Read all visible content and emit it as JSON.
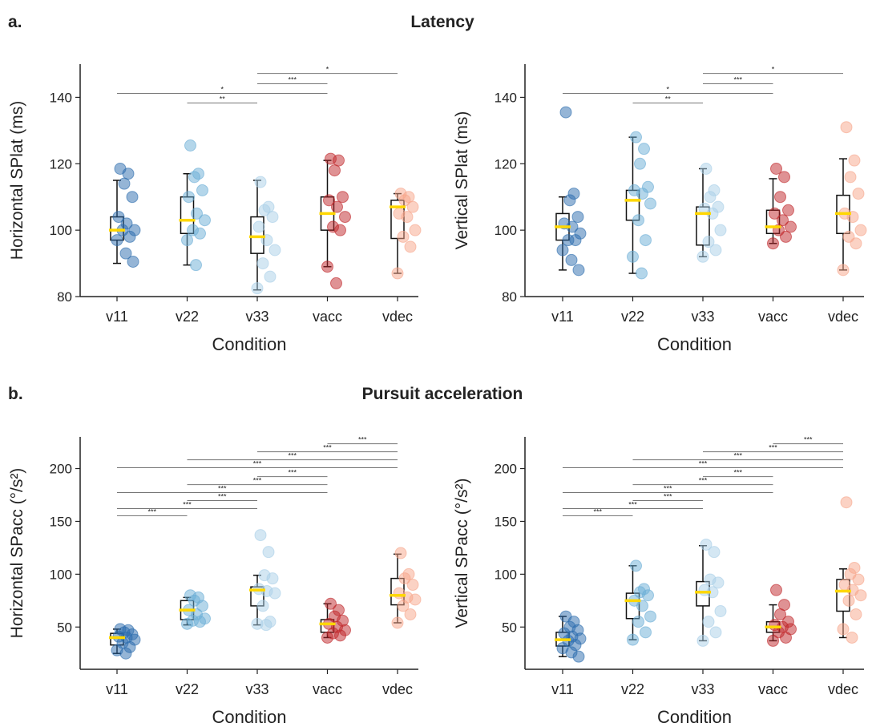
{
  "sections": [
    {
      "letter": "a.",
      "title": "Latency"
    },
    {
      "letter": "b.",
      "title": "Pursuit acceleration"
    }
  ],
  "chart_data": [
    {
      "type": "box",
      "ylabel": "Horizontal SPlat (ms)",
      "xlabel": "Condition",
      "categories": [
        "v11",
        "v22",
        "v33",
        "vacc",
        "vdec"
      ],
      "colors": [
        "#2b6cad",
        "#6aaed6",
        "#a9cfe8",
        "#c0262a",
        "#f7a58a"
      ],
      "median_color": "#ffd700",
      "ylim": [
        80,
        150
      ],
      "yticks": [
        80,
        100,
        120,
        140
      ],
      "groups": [
        {
          "points": [
            118.5,
            117,
            114,
            110,
            104,
            102,
            100,
            100,
            98,
            97,
            93,
            90.5
          ],
          "whisker_low": 90,
          "q1": 97,
          "median": 100,
          "q3": 104,
          "whisker_high": 115
        },
        {
          "points": [
            125.5,
            117,
            116,
            112,
            110,
            105,
            103,
            100,
            99,
            97,
            89.5
          ],
          "whisker_low": 89.5,
          "q1": 99,
          "median": 103,
          "q3": 110,
          "whisker_high": 117
        },
        {
          "points": [
            114.5,
            107,
            106,
            104,
            101,
            97,
            94,
            90,
            86,
            82.5
          ],
          "whisker_low": 82,
          "q1": 93,
          "median": 98,
          "q3": 104,
          "whisker_high": 115
        },
        {
          "points": [
            121.5,
            121,
            118,
            110,
            109,
            107,
            104,
            101,
            100,
            89,
            84
          ],
          "whisker_low": 89,
          "q1": 100,
          "median": 105,
          "q3": 110,
          "whisker_high": 121
        },
        {
          "points": [
            111,
            110,
            109,
            107,
            105,
            104,
            100,
            98,
            95,
            87
          ],
          "whisker_low": 87,
          "q1": 97.5,
          "median": 107,
          "q3": 109,
          "whisker_high": 111
        }
      ],
      "significance": [
        {
          "between": [
            2,
            4
          ],
          "y": 147.2,
          "label": "*"
        },
        {
          "between": [
            2,
            3
          ],
          "y": 144.1,
          "label": "***"
        },
        {
          "between": [
            0,
            3
          ],
          "y": 141.2,
          "label": "*"
        },
        {
          "between": [
            1,
            2
          ],
          "y": 138.3,
          "label": "**"
        }
      ]
    },
    {
      "type": "box",
      "ylabel": "Vertical SPlat (ms)",
      "xlabel": "Condition",
      "categories": [
        "v11",
        "v22",
        "v33",
        "vacc",
        "vdec"
      ],
      "colors": [
        "#2b6cad",
        "#6aaed6",
        "#a9cfe8",
        "#c0262a",
        "#f7a58a"
      ],
      "median_color": "#ffd700",
      "ylim": [
        80,
        150
      ],
      "yticks": [
        80,
        100,
        120,
        140
      ],
      "groups": [
        {
          "points": [
            135.5,
            111,
            109,
            104,
            102,
            101,
            99,
            97,
            97,
            94,
            91,
            88
          ],
          "whisker_low": 88,
          "q1": 97,
          "median": 101,
          "q3": 105,
          "whisker_high": 110
        },
        {
          "points": [
            128,
            124.5,
            120,
            113,
            112,
            111,
            108,
            103,
            97,
            92,
            87
          ],
          "whisker_low": 87,
          "q1": 103,
          "median": 109,
          "q3": 112,
          "whisker_high": 128
        },
        {
          "points": [
            118.5,
            112,
            110,
            107,
            106.5,
            105,
            100,
            96.5,
            94,
            92
          ],
          "whisker_low": 92,
          "q1": 95.5,
          "median": 105,
          "q3": 107,
          "whisker_high": 118.5
        },
        {
          "points": [
            118.5,
            116,
            110,
            106,
            105,
            103,
            101,
            100,
            98,
            96
          ],
          "whisker_low": 96,
          "q1": 99,
          "median": 101,
          "q3": 106,
          "whisker_high": 115.5
        },
        {
          "points": [
            131,
            121,
            116,
            111,
            105,
            104,
            100,
            98,
            96,
            88
          ],
          "whisker_low": 88,
          "q1": 99,
          "median": 105,
          "q3": 110.5,
          "whisker_high": 121.5
        }
      ],
      "significance": [
        {
          "between": [
            2,
            4
          ],
          "y": 147.2,
          "label": "*"
        },
        {
          "between": [
            2,
            3
          ],
          "y": 144.1,
          "label": "***"
        },
        {
          "between": [
            0,
            3
          ],
          "y": 141.2,
          "label": "*"
        },
        {
          "between": [
            1,
            2
          ],
          "y": 138.3,
          "label": "**"
        }
      ]
    },
    {
      "type": "box",
      "ylabel": "Horizontal SPacc (°/s²)",
      "xlabel": "Condition",
      "categories": [
        "v11",
        "v22",
        "v33",
        "vacc",
        "vdec"
      ],
      "colors": [
        "#2b6cad",
        "#6aaed6",
        "#a9cfe8",
        "#c0262a",
        "#f7a58a"
      ],
      "median_color": "#ffd700",
      "ylim": [
        10,
        230
      ],
      "yticks": [
        50,
        100,
        150,
        200
      ],
      "groups": [
        {
          "points": [
            48,
            47,
            45,
            43,
            41,
            40,
            38,
            35,
            31,
            28,
            25
          ],
          "whisker_low": 25,
          "q1": 33,
          "median": 40,
          "q3": 44,
          "whisker_high": 48
        },
        {
          "points": [
            80,
            78,
            75,
            70,
            66,
            62,
            58,
            56,
            55,
            53
          ],
          "whisker_low": 52,
          "q1": 57,
          "median": 66,
          "q3": 75,
          "whisker_high": 78
        },
        {
          "points": [
            137,
            121,
            99,
            96,
            86,
            84,
            82,
            70,
            55,
            53,
            52
          ],
          "whisker_low": 52,
          "q1": 70,
          "median": 85,
          "q3": 88,
          "whisker_high": 99
        },
        {
          "points": [
            72,
            66,
            60,
            56,
            53,
            50,
            47,
            44,
            42,
            40
          ],
          "whisker_low": 40,
          "q1": 45,
          "median": 53,
          "q3": 57,
          "whisker_high": 72
        },
        {
          "points": [
            120,
            100,
            96,
            90,
            82,
            78,
            76,
            70,
            62,
            54
          ],
          "whisker_low": 54,
          "q1": 71,
          "median": 80,
          "q3": 96,
          "whisker_high": 119
        }
      ],
      "significance": [
        {
          "between": [
            3,
            4
          ],
          "y": 223.5,
          "label": "***"
        },
        {
          "between": [
            2,
            4
          ],
          "y": 215.9,
          "label": "***"
        },
        {
          "between": [
            1,
            4
          ],
          "y": 208.3,
          "label": "***"
        },
        {
          "between": [
            0,
            4
          ],
          "y": 200.8,
          "label": "***"
        },
        {
          "between": [
            2,
            3
          ],
          "y": 192.4,
          "label": "***"
        },
        {
          "between": [
            1,
            3
          ],
          "y": 184.8,
          "label": "***"
        },
        {
          "between": [
            0,
            3
          ],
          "y": 177.3,
          "label": "***"
        },
        {
          "between": [
            1,
            2
          ],
          "y": 169.7,
          "label": "***"
        },
        {
          "between": [
            0,
            2
          ],
          "y": 162.1,
          "label": "***"
        },
        {
          "between": [
            0,
            1
          ],
          "y": 155.3,
          "label": "***"
        }
      ]
    },
    {
      "type": "box",
      "ylabel": "Vertical SPacc (°/s²)",
      "xlabel": "Condition",
      "categories": [
        "v11",
        "v22",
        "v33",
        "vacc",
        "vdec"
      ],
      "colors": [
        "#2b6cad",
        "#6aaed6",
        "#a9cfe8",
        "#c0262a",
        "#f7a58a"
      ],
      "median_color": "#ffd700",
      "ylim": [
        10,
        230
      ],
      "yticks": [
        50,
        100,
        150,
        200
      ],
      "groups": [
        {
          "points": [
            60,
            55,
            50,
            47,
            44,
            41,
            39,
            37,
            33,
            30,
            26,
            22
          ],
          "whisker_low": 22,
          "q1": 32,
          "median": 38,
          "q3": 45,
          "whisker_high": 60
        },
        {
          "points": [
            108,
            86,
            83,
            80,
            75,
            70,
            60,
            55,
            45,
            38
          ],
          "whisker_low": 38,
          "q1": 58,
          "median": 75,
          "q3": 82,
          "whisker_high": 108
        },
        {
          "points": [
            128,
            121,
            95,
            92,
            85,
            83,
            65,
            55,
            45,
            37
          ],
          "whisker_low": 37,
          "q1": 70,
          "median": 83,
          "q3": 93,
          "whisker_high": 127
        },
        {
          "points": [
            85,
            71,
            62,
            55,
            52,
            50,
            48,
            45,
            40,
            37
          ],
          "whisker_low": 37,
          "q1": 45,
          "median": 50,
          "q3": 55,
          "whisker_high": 71
        },
        {
          "points": [
            168,
            106,
            100,
            95,
            90,
            85,
            80,
            75,
            62,
            48,
            40
          ],
          "whisker_low": 40,
          "q1": 65,
          "median": 84,
          "q3": 95,
          "whisker_high": 105
        }
      ],
      "significance": [
        {
          "between": [
            3,
            4
          ],
          "y": 223.5,
          "label": "***"
        },
        {
          "between": [
            2,
            4
          ],
          "y": 215.9,
          "label": "***"
        },
        {
          "between": [
            1,
            4
          ],
          "y": 208.3,
          "label": "***"
        },
        {
          "between": [
            0,
            4
          ],
          "y": 200.8,
          "label": "***"
        },
        {
          "between": [
            2,
            3
          ],
          "y": 192.4,
          "label": "***"
        },
        {
          "between": [
            1,
            3
          ],
          "y": 184.8,
          "label": "***"
        },
        {
          "between": [
            0,
            3
          ],
          "y": 177.3,
          "label": "***"
        },
        {
          "between": [
            1,
            2
          ],
          "y": 169.7,
          "label": "***"
        },
        {
          "between": [
            0,
            2
          ],
          "y": 162.1,
          "label": "***"
        },
        {
          "between": [
            0,
            1
          ],
          "y": 155.3,
          "label": "***"
        }
      ]
    }
  ]
}
